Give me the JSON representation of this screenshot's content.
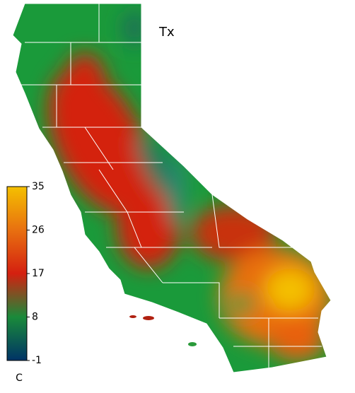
{
  "title": "Tx",
  "colorbar": {
    "unit": "C",
    "lim": [
      -1,
      35
    ],
    "ticks": [
      35,
      26,
      17,
      8,
      -1
    ],
    "colors": [
      "#003366",
      "#1a8a3a",
      "#d42010",
      "#e87010",
      "#f4c000"
    ]
  }
}
